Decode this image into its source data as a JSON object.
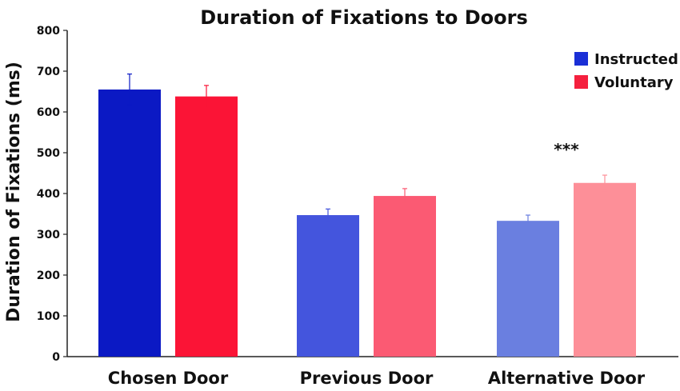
{
  "chart_data": {
    "type": "bar",
    "title": "Duration of Fixations to Doors",
    "ylabel": "Duration of Fixations (ms)",
    "xlabel": "",
    "ylim": [
      0,
      800
    ],
    "yticks": [
      0,
      100,
      200,
      300,
      400,
      500,
      600,
      700,
      800
    ],
    "categories": [
      "Chosen Door",
      "Previous Door",
      "Alternative Door"
    ],
    "series": [
      {
        "name": "Instructed",
        "legend_color": "#1a2fd6",
        "colors": [
          "#0b19c4",
          "#4455dd",
          "#6a7fe0"
        ],
        "values": [
          655,
          347,
          333
        ],
        "errors": [
          38,
          15,
          14
        ]
      },
      {
        "name": "Voluntary",
        "legend_color": "#f5203e",
        "colors": [
          "#fb1436",
          "#fb5a73",
          "#fd8f98"
        ],
        "values": [
          638,
          394,
          426
        ],
        "errors": [
          27,
          18,
          19
        ]
      }
    ],
    "annotations": [
      {
        "category": "Alternative Door",
        "text": "***",
        "y": 510
      }
    ],
    "legend_position": "top-right",
    "grid": false
  }
}
